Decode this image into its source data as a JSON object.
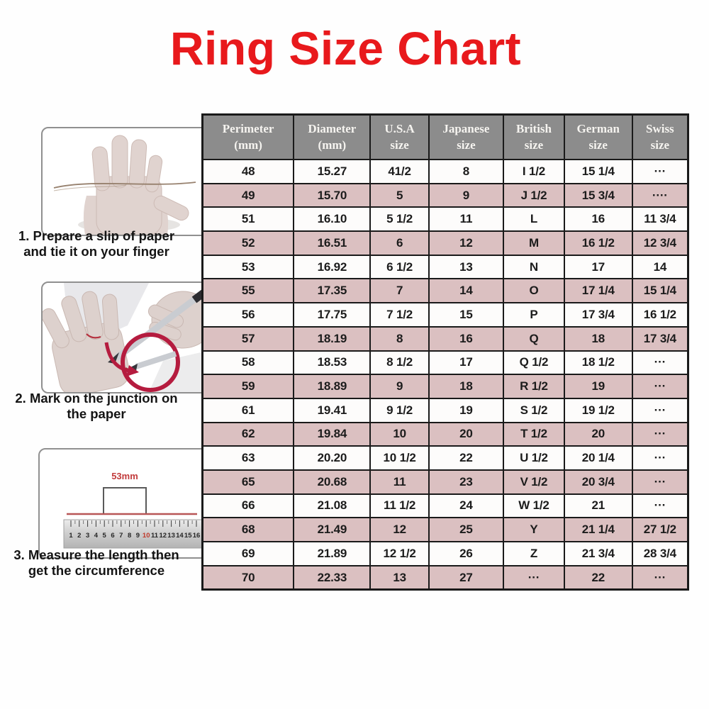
{
  "title": "Ring Size Chart",
  "colors": {
    "title_red": "#e8191c",
    "header_gray": "#8c8c8c",
    "row_pink": "#dbc0c1",
    "row_white": "#fdfcfb",
    "border_dark": "#1a1a1a",
    "annotation_red": "#b51c3f",
    "ruler_label_red": "#c23b3c"
  },
  "steps": [
    {
      "illustration": "hand-with-paper-string",
      "lines": [
        "1. Prepare a slip of paper",
        "and tie it on your finger"
      ]
    },
    {
      "illustration": "pen-marking-junction-with-red-circle",
      "lines": [
        "2. Mark on the junction on",
        "the paper"
      ]
    },
    {
      "illustration": "ruler-measuring-strip",
      "lines": [
        "3. Measure the length then",
        "get the circumference"
      ],
      "ruler_label": "53mm",
      "ruler_numbers": [
        "1",
        "2",
        "3",
        "4",
        "5",
        "6",
        "7",
        "8",
        "9",
        "10",
        "11",
        "12",
        "13",
        "14",
        "15",
        "16"
      ],
      "ruler_highlight_number": "10"
    }
  ],
  "chart_data": {
    "type": "table",
    "title": "Ring Size Chart",
    "columns": [
      {
        "line1": "Perimeter",
        "line2": "(mm)"
      },
      {
        "line1": "Diameter",
        "line2": "(mm)"
      },
      {
        "line1": "U.S.A",
        "line2": "size"
      },
      {
        "line1": "Japanese",
        "line2": "size"
      },
      {
        "line1": "British",
        "line2": "size"
      },
      {
        "line1": "German",
        "line2": "size"
      },
      {
        "line1": "Swiss",
        "line2": "size"
      }
    ],
    "rows": [
      [
        "48",
        "15.27",
        "41/2",
        "8",
        "I 1/2",
        "15 1/4",
        "···"
      ],
      [
        "49",
        "15.70",
        "5",
        "9",
        "J 1/2",
        "15 3/4",
        "····"
      ],
      [
        "51",
        "16.10",
        "5 1/2",
        "11",
        "L",
        "16",
        "11 3/4"
      ],
      [
        "52",
        "16.51",
        "6",
        "12",
        "M",
        "16 1/2",
        "12 3/4"
      ],
      [
        "53",
        "16.92",
        "6 1/2",
        "13",
        "N",
        "17",
        "14"
      ],
      [
        "55",
        "17.35",
        "7",
        "14",
        "O",
        "17 1/4",
        "15 1/4"
      ],
      [
        "56",
        "17.75",
        "7 1/2",
        "15",
        "P",
        "17 3/4",
        "16 1/2"
      ],
      [
        "57",
        "18.19",
        "8",
        "16",
        "Q",
        "18",
        "17 3/4"
      ],
      [
        "58",
        "18.53",
        "8 1/2",
        "17",
        "Q 1/2",
        "18 1/2",
        "···"
      ],
      [
        "59",
        "18.89",
        "9",
        "18",
        "R 1/2",
        "19",
        "···"
      ],
      [
        "61",
        "19.41",
        "9 1/2",
        "19",
        "S 1/2",
        "19 1/2",
        "···"
      ],
      [
        "62",
        "19.84",
        "10",
        "20",
        "T 1/2",
        "20",
        "···"
      ],
      [
        "63",
        "20.20",
        "10 1/2",
        "22",
        "U 1/2",
        "20 1/4",
        "···"
      ],
      [
        "65",
        "20.68",
        "11",
        "23",
        "V 1/2",
        "20 3/4",
        "···"
      ],
      [
        "66",
        "21.08",
        "11 1/2",
        "24",
        "W 1/2",
        "21",
        "···"
      ],
      [
        "68",
        "21.49",
        "12",
        "25",
        "Y",
        "21 1/4",
        "27 1/2"
      ],
      [
        "69",
        "21.89",
        "12 1/2",
        "26",
        "Z",
        "21 3/4",
        "28 3/4"
      ],
      [
        "70",
        "22.33",
        "13",
        "27",
        "···",
        "22",
        "···"
      ]
    ]
  }
}
